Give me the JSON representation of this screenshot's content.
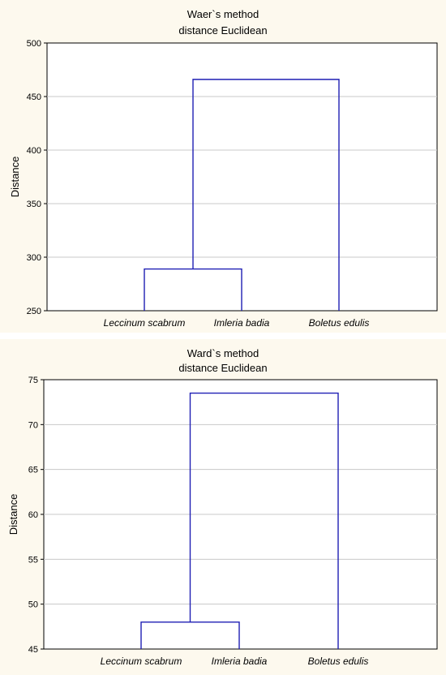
{
  "chart_data": [
    {
      "type": "dendrogram",
      "title_line1": "Waer`s method",
      "title_line2": "distance Euclidean",
      "ylabel": "Distance",
      "ylim": [
        250,
        500
      ],
      "yticks": [
        "250",
        "300",
        "350",
        "400",
        "450",
        "500"
      ],
      "ytick_values": [
        250,
        300,
        350,
        400,
        450,
        500
      ],
      "grid": true,
      "leaves": [
        "Leccinum scabrum",
        "Imleria badia",
        "Boletus edulis"
      ],
      "merges": [
        {
          "left": 0,
          "right": 1,
          "height": 289
        },
        {
          "left": "cluster-0-1",
          "right": 2,
          "height": 466
        }
      ],
      "color": "#1f1fb4"
    },
    {
      "type": "dendrogram",
      "title_line1": "Ward`s method",
      "title_line2": "distance Euclidean",
      "ylabel": "Distance",
      "ylim": [
        45,
        75
      ],
      "yticks": [
        "45",
        "50",
        "55",
        "60",
        "65",
        "70",
        "75"
      ],
      "ytick_values": [
        45,
        50,
        55,
        60,
        65,
        70,
        75
      ],
      "grid": true,
      "leaves": [
        "Leccinum scabrum",
        "Imleria badia",
        "Boletus edulis"
      ],
      "merges": [
        {
          "left": 0,
          "right": 1,
          "height": 48
        },
        {
          "left": "cluster-0-1",
          "right": 2,
          "height": 73.5
        }
      ],
      "color": "#1f1fb4"
    }
  ]
}
